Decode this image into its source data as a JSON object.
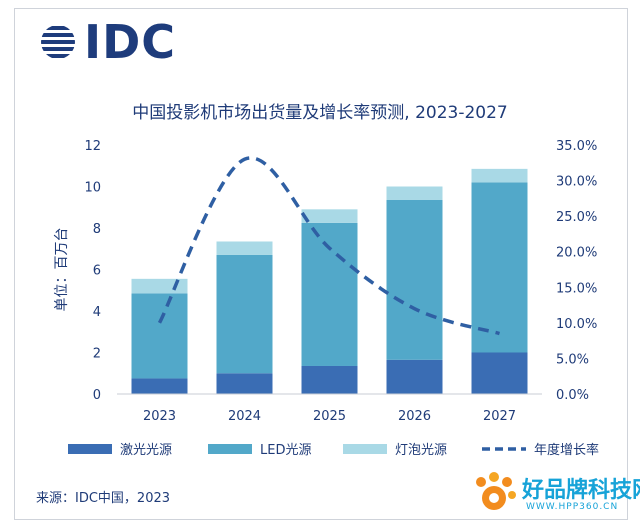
{
  "header": {
    "logo_text": "IDC"
  },
  "chart_data": {
    "type": "bar",
    "title": "中国投影机市场出货量及增长率预测, 2023-2027",
    "ylabel": "单位：百万台",
    "ylim": [
      0,
      12
    ],
    "y_ticks": [
      "0",
      "2",
      "4",
      "6",
      "8",
      "10",
      "12"
    ],
    "y2lim": [
      0,
      35
    ],
    "y2_ticks": [
      "0.0%",
      "5.0%",
      "10.0%",
      "15.0%",
      "20.0%",
      "25.0%",
      "30.0%",
      "35.0%"
    ],
    "categories": [
      "2023",
      "2024",
      "2025",
      "2026",
      "2027"
    ],
    "stacked": true,
    "series": [
      {
        "name": "激光光源",
        "values": [
          0.75,
          1.0,
          1.35,
          1.65,
          2.0
        ],
        "color": "#3a6db4"
      },
      {
        "name": "LED光源",
        "values": [
          4.1,
          5.7,
          6.9,
          7.7,
          8.2
        ],
        "color": "#52a8c9"
      },
      {
        "name": "灯泡光源",
        "values": [
          0.7,
          0.65,
          0.65,
          0.65,
          0.65
        ],
        "color": "#a9d9e6"
      }
    ],
    "line_series": {
      "name": "年度增长率",
      "axis": "right",
      "values": [
        10.0,
        33.0,
        20.5,
        12.0,
        8.5
      ],
      "color": "#2f5fa3",
      "style": "dashed"
    },
    "legend_position": "bottom",
    "grid": false
  },
  "footer": {
    "source": "来源：IDC中国，2023"
  },
  "watermark": {
    "name": "好品牌科技网",
    "url": "WWW.HPP360.CN"
  }
}
